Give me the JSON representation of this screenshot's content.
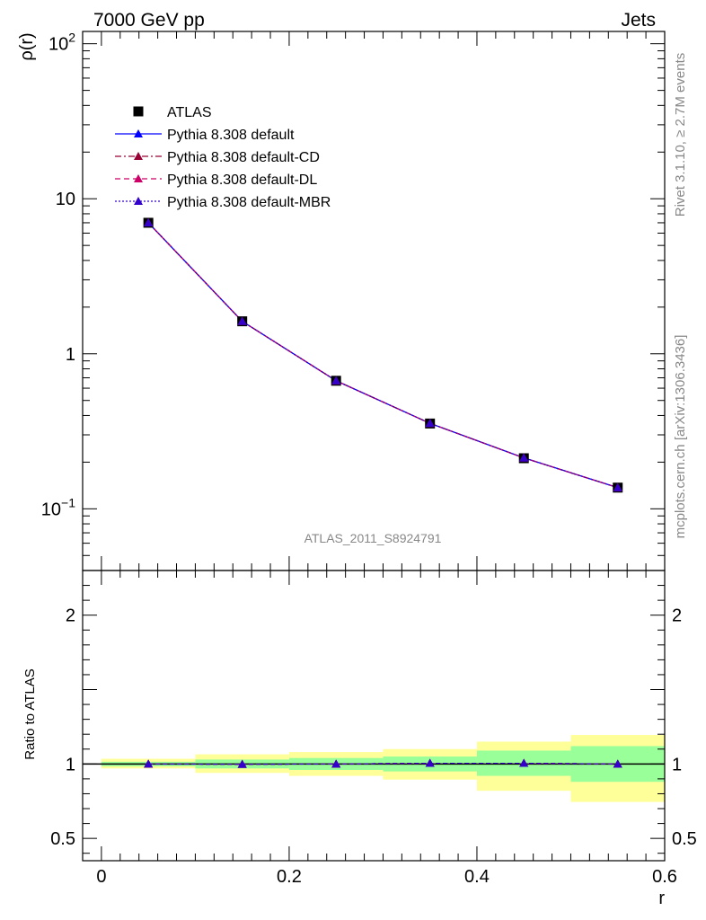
{
  "header": {
    "left": "7000 GeV pp",
    "right": "Jets"
  },
  "side_labels": {
    "top": "Rivet 3.1.10, ≥ 2.7M events",
    "bottom": "mcplots.cern.ch [arXiv:1306.3436]"
  },
  "watermark": "ATLAS_2011_S8924791",
  "chart_data": [
    {
      "type": "line",
      "panel": "main",
      "ylabel": "ρ(r)",
      "xlabel": "",
      "y_scale": "log",
      "xlim": [
        -0.02,
        0.6
      ],
      "ylim": [
        0.04,
        120
      ],
      "yticks": [
        0.1,
        1,
        10,
        100
      ],
      "ytick_labels": [
        "10^-1",
        "1",
        "10",
        "10^2"
      ],
      "x": [
        0.05,
        0.15,
        0.25,
        0.35,
        0.45,
        0.55
      ],
      "data": {
        "name": "ATLAS",
        "values": [
          7.0,
          1.62,
          0.67,
          0.355,
          0.212,
          0.137
        ],
        "color": "#000000",
        "marker": "square"
      },
      "series": [
        {
          "name": "Pythia 8.308 default",
          "values": [
            7.0,
            1.62,
            0.67,
            0.356,
            0.213,
            0.137
          ],
          "color": "#0000ff",
          "style": "solid"
        },
        {
          "name": "Pythia 8.308 default-CD",
          "values": [
            7.0,
            1.62,
            0.67,
            0.356,
            0.213,
            0.137
          ],
          "color": "#990033",
          "style": "dashdot"
        },
        {
          "name": "Pythia 8.308 default-DL",
          "values": [
            7.0,
            1.62,
            0.67,
            0.356,
            0.213,
            0.137
          ],
          "color": "#cc0066",
          "style": "dashed"
        },
        {
          "name": "Pythia 8.308 default-MBR",
          "values": [
            7.0,
            1.62,
            0.67,
            0.356,
            0.213,
            0.137
          ],
          "color": "#3300cc",
          "style": "dotted"
        }
      ],
      "legend_placement": "top-left"
    },
    {
      "type": "line",
      "panel": "ratio",
      "ylabel": "Ratio to ATLAS",
      "xlabel": "r",
      "xlim": [
        -0.02,
        0.6
      ],
      "ylim": [
        0.35,
        2.3
      ],
      "yticks": [
        0.5,
        1,
        2
      ],
      "ytick_labels": [
        "0.5",
        "1",
        "2"
      ],
      "xticks": [
        0,
        0.2,
        0.4,
        0.6
      ],
      "xtick_labels": [
        "0",
        "0.2",
        "0.4",
        "0.6"
      ],
      "x": [
        0.05,
        0.15,
        0.25,
        0.35,
        0.45,
        0.55
      ],
      "bins": [
        [
          0.0,
          0.1
        ],
        [
          0.1,
          0.2
        ],
        [
          0.2,
          0.3
        ],
        [
          0.3,
          0.4
        ],
        [
          0.4,
          0.5
        ],
        [
          0.5,
          0.6
        ]
      ],
      "green_band": [
        [
          0.985,
          1.015
        ],
        [
          0.97,
          1.03
        ],
        [
          0.96,
          1.04
        ],
        [
          0.95,
          1.05
        ],
        [
          0.92,
          1.09
        ],
        [
          0.88,
          1.12
        ]
      ],
      "yellow_band": [
        [
          0.97,
          1.035
        ],
        [
          0.94,
          1.065
        ],
        [
          0.92,
          1.08
        ],
        [
          0.895,
          1.1
        ],
        [
          0.82,
          1.15
        ],
        [
          0.745,
          1.195
        ]
      ],
      "series": [
        {
          "name": "Pythia 8.308 default",
          "values": [
            1.0,
            0.998,
            1.0,
            1.005,
            1.005,
            1.0
          ],
          "color": "#0000ff"
        },
        {
          "name": "Pythia 8.308 default-CD",
          "values": [
            1.0,
            0.998,
            1.0,
            1.005,
            1.005,
            1.0
          ],
          "color": "#990033"
        },
        {
          "name": "Pythia 8.308 default-DL",
          "values": [
            1.0,
            0.998,
            1.0,
            1.005,
            1.005,
            1.0
          ],
          "color": "#cc0066"
        },
        {
          "name": "Pythia 8.308 default-MBR",
          "values": [
            1.0,
            0.998,
            1.0,
            1.005,
            1.005,
            1.0
          ],
          "color": "#3300cc"
        }
      ],
      "colors": {
        "green": "#99ff99",
        "yellow": "#ffff99",
        "reference_line": "#000000"
      }
    }
  ]
}
